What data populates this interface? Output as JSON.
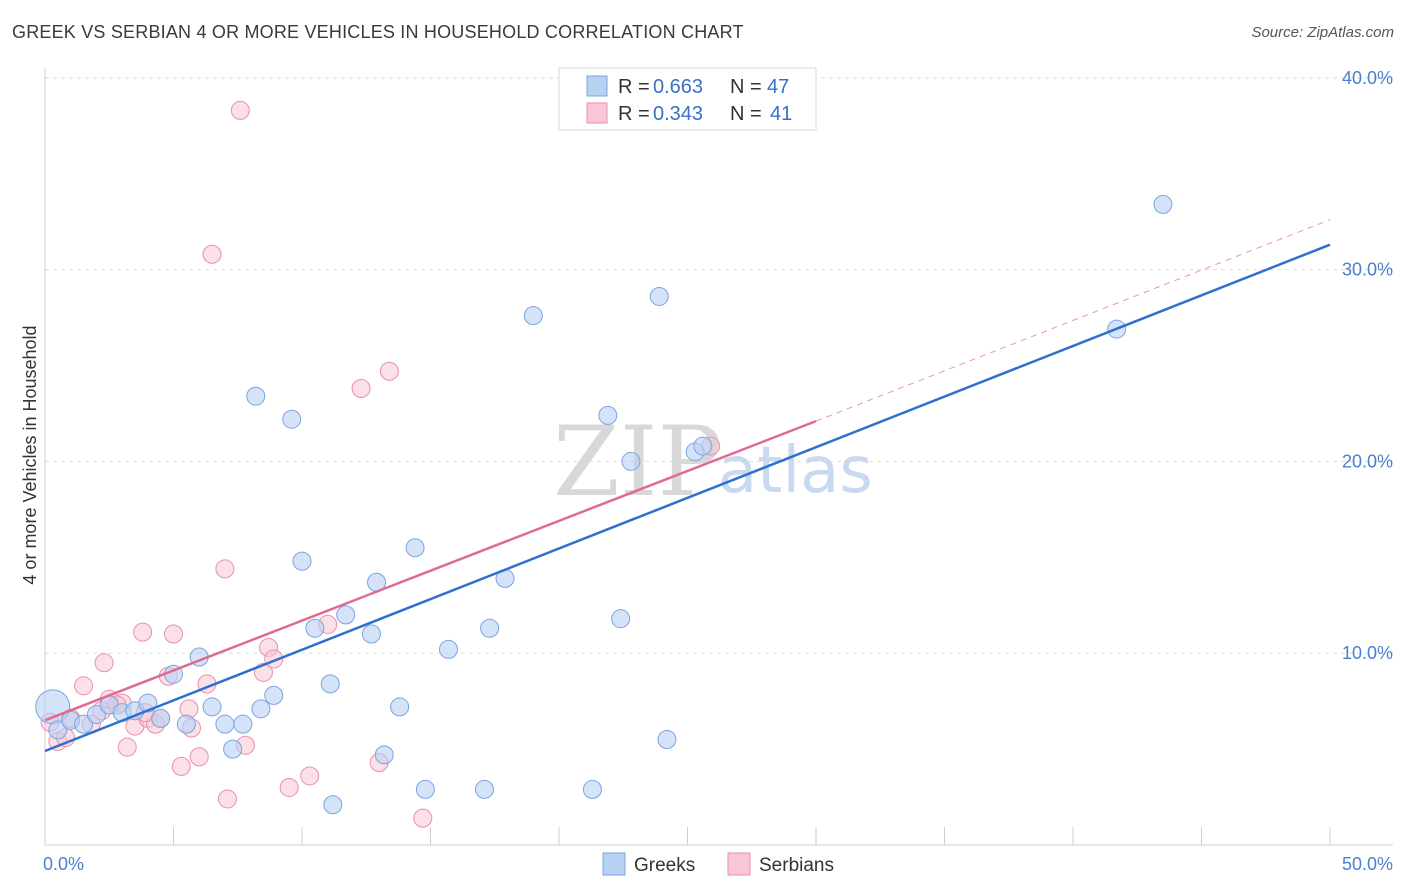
{
  "title": "GREEK VS SERBIAN 4 OR MORE VEHICLES IN HOUSEHOLD CORRELATION CHART",
  "source": "Source: ZipAtlas.com",
  "watermark": {
    "zip": "ZIP",
    "atlas": "atlas"
  },
  "colors": {
    "greeks_fill": "#b7d1f3",
    "greeks_stroke": "#7aa5e0",
    "greeks_line": "#2f6fcf",
    "serbians_fill": "#f8c6d6",
    "serbians_stroke": "#e98fac",
    "serbians_line": "#e06a93",
    "grid": "#dddddd",
    "tick_text": "#4a7fd0"
  },
  "legend": {
    "rows": [
      {
        "r_label": "R = ",
        "r_value": "0.663",
        "n_label": "N = ",
        "n_value": "47"
      },
      {
        "r_label": "R = ",
        "r_value": "0.343",
        "n_label": "N = ",
        "n_value": "41"
      }
    ]
  },
  "bottom_legend": {
    "greeks": "Greeks",
    "serbians": "Serbians"
  },
  "chart_data": {
    "type": "scatter",
    "title": "GREEK VS SERBIAN 4 OR MORE VEHICLES IN HOUSEHOLD CORRELATION CHART",
    "xlabel": "",
    "ylabel": "4 or more Vehicles in Household",
    "xlim": [
      0,
      50
    ],
    "ylim": [
      0,
      41
    ],
    "x_tick_labels": {
      "min": "0.0%",
      "max": "50.0%"
    },
    "y_ticks": [
      {
        "value": 10,
        "label": "10.0%"
      },
      {
        "value": 20,
        "label": "20.0%"
      },
      {
        "value": 30,
        "label": "30.0%"
      },
      {
        "value": 40,
        "label": "40.0%"
      }
    ],
    "series": [
      {
        "name": "Greeks",
        "R": 0.663,
        "N": 47,
        "trend": {
          "x0": 0,
          "y0": 4.9,
          "x1": 50,
          "y1": 31.3
        },
        "points": [
          [
            0.3,
            7.2,
            3
          ],
          [
            0.5,
            6.0,
            1
          ],
          [
            1.0,
            6.5,
            1
          ],
          [
            1.5,
            6.3,
            1
          ],
          [
            2.0,
            6.8,
            1
          ],
          [
            2.5,
            7.3,
            1
          ],
          [
            3.0,
            6.9,
            1
          ],
          [
            3.5,
            7.0,
            1
          ],
          [
            4.0,
            7.4,
            1
          ],
          [
            4.5,
            6.6,
            1
          ],
          [
            5.0,
            8.9,
            1
          ],
          [
            5.5,
            6.3,
            1
          ],
          [
            6.0,
            9.8,
            1
          ],
          [
            6.5,
            7.2,
            1
          ],
          [
            7.0,
            6.3,
            1
          ],
          [
            7.3,
            5.0,
            1
          ],
          [
            7.7,
            6.3,
            1
          ],
          [
            8.2,
            23.4,
            1
          ],
          [
            8.4,
            7.1,
            1
          ],
          [
            8.9,
            7.8,
            1
          ],
          [
            9.6,
            22.2,
            1
          ],
          [
            10.0,
            14.8,
            1
          ],
          [
            10.5,
            11.3,
            1
          ],
          [
            11.1,
            8.4,
            1
          ],
          [
            11.2,
            2.1,
            1
          ],
          [
            11.7,
            12.0,
            1
          ],
          [
            12.7,
            11.0,
            1
          ],
          [
            12.9,
            13.7,
            1
          ],
          [
            13.2,
            4.7,
            1
          ],
          [
            13.8,
            7.2,
            1
          ],
          [
            14.4,
            15.5,
            1
          ],
          [
            14.8,
            2.9,
            1
          ],
          [
            15.7,
            10.2,
            1
          ],
          [
            17.1,
            2.9,
            1
          ],
          [
            17.3,
            11.3,
            1
          ],
          [
            17.9,
            13.9,
            1
          ],
          [
            19.0,
            27.6,
            1
          ],
          [
            21.3,
            2.9,
            1
          ],
          [
            21.9,
            22.4,
            1
          ],
          [
            22.4,
            11.8,
            1
          ],
          [
            22.8,
            20.0,
            1
          ],
          [
            23.9,
            28.6,
            1
          ],
          [
            24.2,
            5.5,
            1
          ],
          [
            25.3,
            20.5,
            1
          ],
          [
            25.6,
            20.8,
            1
          ],
          [
            41.7,
            26.9,
            1
          ],
          [
            43.5,
            33.4,
            1
          ]
        ]
      },
      {
        "name": "Serbians",
        "R": 0.343,
        "N": 41,
        "trend": {
          "x0": 0,
          "y0": 6.5,
          "x1": 30,
          "y1": 22.1
        },
        "trend_dashed": {
          "x0": 30,
          "y0": 22.1,
          "x1": 50,
          "y1": 32.6
        },
        "points": [
          [
            0.2,
            6.4,
            1
          ],
          [
            0.5,
            5.4,
            1
          ],
          [
            0.8,
            5.6,
            1
          ],
          [
            1.0,
            6.6,
            1
          ],
          [
            1.5,
            8.3,
            1
          ],
          [
            1.8,
            6.3,
            1
          ],
          [
            2.2,
            7.0,
            1
          ],
          [
            2.3,
            9.5,
            1
          ],
          [
            2.5,
            7.6,
            1
          ],
          [
            3.0,
            7.4,
            1
          ],
          [
            3.2,
            5.1,
            1
          ],
          [
            3.5,
            6.2,
            1
          ],
          [
            3.8,
            11.1,
            1
          ],
          [
            4.0,
            6.6,
            1
          ],
          [
            4.3,
            6.3,
            1
          ],
          [
            4.5,
            6.6,
            1
          ],
          [
            4.8,
            8.8,
            1
          ],
          [
            5.0,
            11.0,
            1
          ],
          [
            5.3,
            4.1,
            1
          ],
          [
            5.6,
            7.1,
            1
          ],
          [
            5.7,
            6.1,
            1
          ],
          [
            6.0,
            4.6,
            1
          ],
          [
            6.3,
            8.4,
            1
          ],
          [
            6.5,
            30.8,
            1
          ],
          [
            7.0,
            14.4,
            1
          ],
          [
            7.1,
            2.4,
            1
          ],
          [
            7.6,
            38.3,
            1
          ],
          [
            7.8,
            5.2,
            1
          ],
          [
            8.5,
            9.0,
            1
          ],
          [
            8.7,
            10.3,
            1
          ],
          [
            8.9,
            9.7,
            1
          ],
          [
            9.5,
            3.0,
            1
          ],
          [
            10.3,
            3.6,
            1
          ],
          [
            11.0,
            11.5,
            1
          ],
          [
            12.3,
            23.8,
            1
          ],
          [
            13.0,
            4.3,
            1
          ],
          [
            13.4,
            24.7,
            1
          ],
          [
            14.7,
            1.4,
            1
          ],
          [
            25.9,
            20.8,
            1
          ],
          [
            2.8,
            7.3,
            1
          ],
          [
            3.9,
            6.9,
            1
          ]
        ]
      }
    ]
  }
}
